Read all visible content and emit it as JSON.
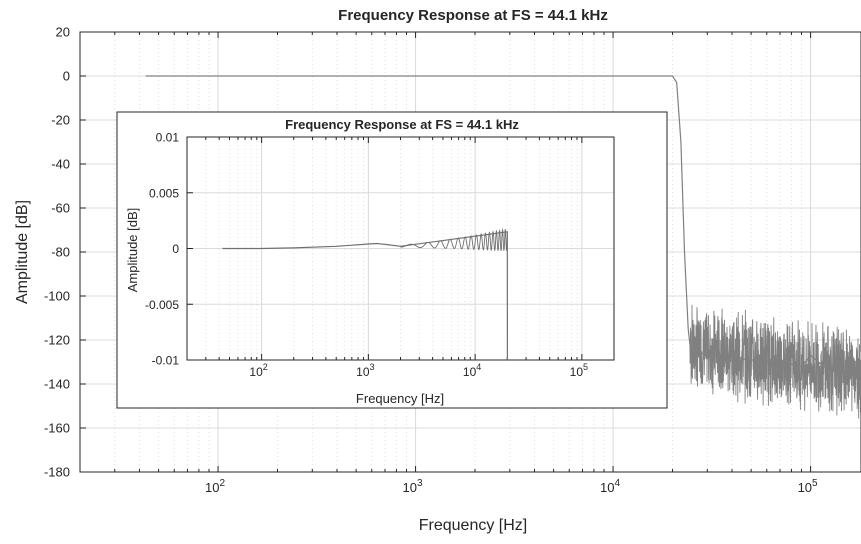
{
  "chart_data": [
    {
      "type": "line",
      "title": "Frequency Response at FS = 44.1 kHz",
      "xlabel": "Frequency [Hz]",
      "ylabel": "Amplitude [dB]",
      "xscale": "log",
      "xlim": [
        20,
        180000
      ],
      "ylim": [
        -180,
        20
      ],
      "xticks": [
        100,
        1000,
        10000,
        100000
      ],
      "xtick_labels": [
        {
          "base": "10",
          "exp": "2"
        },
        {
          "base": "10",
          "exp": "3"
        },
        {
          "base": "10",
          "exp": "4"
        },
        {
          "base": "10",
          "exp": "5"
        }
      ],
      "yticks": [
        20,
        0,
        -20,
        -40,
        -60,
        -80,
        -100,
        -120,
        -140,
        -160,
        -180
      ],
      "ytick_labels": [
        "20",
        "0",
        "-20",
        "-40",
        "-60",
        "-80",
        "-100",
        "-120",
        "-140",
        "-160",
        "-180"
      ],
      "grid": true,
      "line_color": "#808080",
      "series": [
        {
          "x": [
            43,
            500,
            1000,
            5000,
            10000,
            18000,
            20000,
            21000,
            22050,
            23000,
            24000,
            24500,
            25000,
            30000,
            40000,
            50000,
            60000,
            70000,
            80000,
            90000,
            100000,
            120000,
            150000,
            180000
          ],
          "y": [
            0,
            0,
            0,
            0,
            0,
            0,
            0,
            -3,
            -30,
            -80,
            -115,
            -122,
            -124,
            -127,
            -128,
            -129,
            -130,
            -130,
            -131,
            -132,
            -127,
            -133,
            -135,
            -137
          ]
        }
      ]
    },
    {
      "type": "line",
      "title": "Frequency Response at FS = 44.1 kHz",
      "xlabel": "Frequency [Hz]",
      "ylabel": "Amplitude [dB]",
      "xscale": "log",
      "xlim": [
        20,
        200000
      ],
      "ylim": [
        -0.01,
        0.01
      ],
      "xticks": [
        100,
        1000,
        10000,
        100000
      ],
      "xtick_labels": [
        {
          "base": "10",
          "exp": "2"
        },
        {
          "base": "10",
          "exp": "3"
        },
        {
          "base": "10",
          "exp": "4"
        },
        {
          "base": "10",
          "exp": "5"
        }
      ],
      "yticks": [
        0.01,
        0.005,
        0,
        -0.005,
        -0.01
      ],
      "ytick_labels": [
        "0.01",
        "0.005",
        "0",
        "-0.005",
        "-0.01"
      ],
      "grid": true,
      "line_color": "#707070",
      "series": [
        {
          "x": [
            43,
            100,
            200,
            500,
            700,
            1000,
            1200,
            1500,
            2000,
            20000,
            20050,
            20100
          ],
          "y": [
            0,
            0,
            5e-05,
            0.0002,
            0.0003,
            0.0004,
            0.00045,
            0.00035,
            0.0002,
            0.0015,
            -0.01,
            -0.01
          ]
        }
      ]
    }
  ]
}
